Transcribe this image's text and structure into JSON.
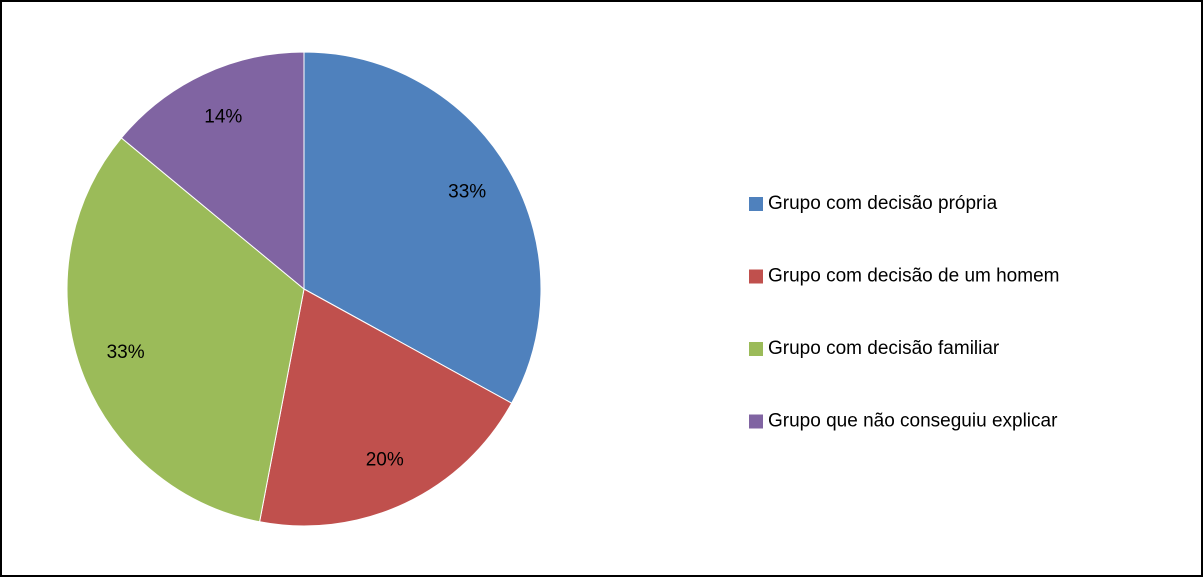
{
  "chart_data": {
    "type": "pie",
    "categories": [
      "Grupo com decisão própria",
      "Grupo com decisão de um homem",
      "Grupo com decisão familiar",
      "Grupo que não conseguiu explicar"
    ],
    "values": [
      33,
      20,
      33,
      14
    ],
    "value_labels": [
      "33%",
      "20%",
      "33%",
      "14%"
    ],
    "colors": [
      "#4f81bd",
      "#c0504d",
      "#9bbb59",
      "#8064a2"
    ],
    "legend": "right"
  }
}
